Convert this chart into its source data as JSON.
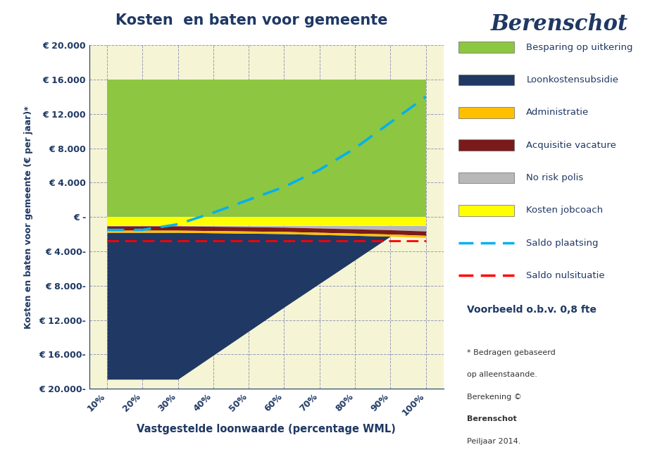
{
  "title": "Kosten  en baten voor gemeente",
  "branding": "Berenschot",
  "xlabel": "Vastgestelde loonwaarde (percentage WML)",
  "ylabel": "Kosten en baten voor gemeente (€ per jaar)*",
  "x_labels": [
    "10%",
    "20%",
    "30%",
    "40%",
    "50%",
    "60%",
    "70%",
    "80%",
    "90%",
    "100%"
  ],
  "ylim": [
    -20000,
    20000
  ],
  "yticks": [
    -20000,
    -16000,
    -12000,
    -8000,
    -4000,
    0,
    4000,
    8000,
    12000,
    16000,
    20000
  ],
  "ytick_labels": [
    "€ 20.000-",
    "€ 16.000-",
    "€ 12.000-",
    "€ 8.000-",
    "€ 4.000-",
    "€ -",
    "€ 4.000",
    "€ 8.000",
    "€ 12.000",
    "€ 16.000",
    "€ 20.000"
  ],
  "bg_color": "#f5f5d5",
  "green_color": "#8dc641",
  "navy_color": "#1f3864",
  "yellow_color": "#ffff00",
  "orange_color": "#ffc000",
  "darkred_color": "#7b1a1a",
  "gray_color": "#b8b8b8",
  "cyan_color": "#00b0f0",
  "red_color": "#ff0000",
  "title_color": "#1f3864",
  "besparing_op_uitkering": [
    16000,
    16000,
    16000,
    16000,
    16000,
    16000,
    16000,
    16000,
    16000,
    16000
  ],
  "loonkostensubsidie": [
    -17100,
    -17100,
    -17100,
    -14250,
    -11400,
    -8550,
    -5700,
    -2850,
    0,
    0
  ],
  "kosten_jobcoach": [
    -1000,
    -1000,
    -1000,
    -1000,
    -1000,
    -1000,
    -1000,
    -1000,
    -1000,
    -1000
  ],
  "acquisitie_vacature": [
    -500,
    -500,
    -500,
    -500,
    -500,
    -500,
    -500,
    -500,
    -500,
    -500
  ],
  "administratie": [
    -250,
    -250,
    -250,
    -250,
    -250,
    -250,
    -250,
    -250,
    -250,
    -250
  ],
  "no_risk_polis": [
    -50,
    -50,
    -50,
    -100,
    -150,
    -200,
    -300,
    -400,
    -500,
    -650
  ],
  "saldo_plaatsing": [
    -1500,
    -1500,
    -850,
    500,
    2000,
    3500,
    5500,
    8000,
    11000,
    14000
  ],
  "saldo_nulsituatie": [
    -2800,
    -2800,
    -2800,
    -2800,
    -2800,
    -2800,
    -2800,
    -2800,
    -2800,
    -2800
  ],
  "legend_labels": [
    "Besparing op uitkering",
    "Loonkostensubsidie",
    "Administratie",
    "Acquisitie vacature",
    "No risk polis",
    "Kosten jobcoach",
    "Saldo plaatsing",
    "Saldo nulsituatie"
  ],
  "footnote_lines": [
    "* Bedragen gebaseerd",
    "op alleenstaande.",
    "Berekening ©",
    "Berenschot",
    "Peiljaar 2014."
  ],
  "example_text": "Voorbeeld o.b.v. 0,8 fte"
}
